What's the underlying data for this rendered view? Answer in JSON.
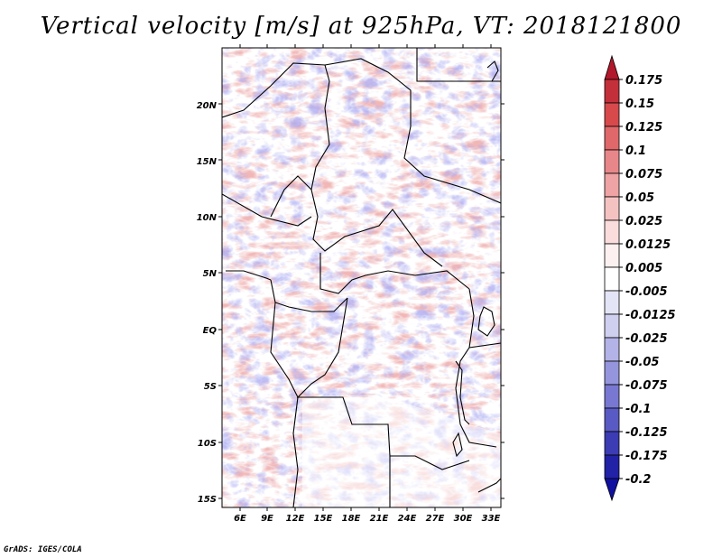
{
  "title": "Vertical velocity [m/s] at 925hPa, VT: 2018121800",
  "footer": "GrADS: IGES/COLA",
  "map": {
    "lat_labels": [
      "20N",
      "15N",
      "10N",
      "5N",
      "EQ",
      "5S",
      "10S",
      "15S"
    ],
    "lon_labels": [
      "6E",
      "9E",
      "12E",
      "15E",
      "18E",
      "21E",
      "24E",
      "27E",
      "30E",
      "33E"
    ],
    "lat_range": [
      -16,
      24.5
    ],
    "lon_range": [
      4,
      34
    ]
  },
  "colorbar": {
    "labels": [
      "0.175",
      "0.15",
      "0.125",
      "0.1",
      "0.075",
      "0.05",
      "0.025",
      "0.0125",
      "0.005",
      "-0.005",
      "-0.0125",
      "-0.025",
      "-0.05",
      "-0.075",
      "-0.1",
      "-0.125",
      "-0.175",
      "-0.2"
    ],
    "colors": [
      "#b2182b",
      "#c4303a",
      "#d8494c",
      "#e0676a",
      "#e8878a",
      "#efa3a4",
      "#f5c2c2",
      "#fadcdc",
      "#fdf0f0",
      "#ffffff",
      "#e4e4f7",
      "#cfcff0",
      "#b3b3e8",
      "#9595de",
      "#7878d2",
      "#5a5ac4",
      "#3c3cb5",
      "#2222a6",
      "#1010a0"
    ]
  }
}
